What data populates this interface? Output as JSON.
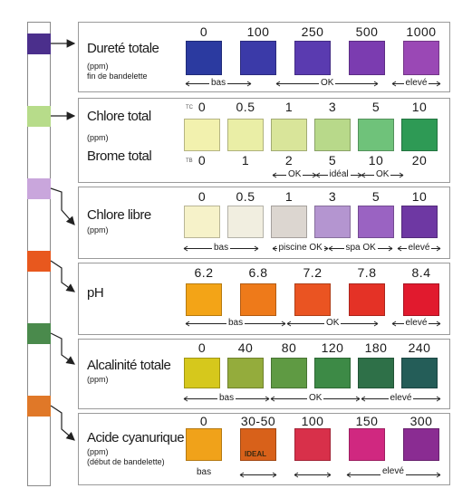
{
  "strip_pads": [
    {
      "color": "#4b2f8c",
      "name": "strip-pad-durete"
    },
    {
      "color": "#b7dc8a",
      "name": "strip-pad-chlore-total"
    },
    {
      "color": "#c9a6dc",
      "name": "strip-pad-chlore-libre"
    },
    {
      "color": "#e8581e",
      "name": "strip-pad-ph"
    },
    {
      "color": "#4a8a4c",
      "name": "strip-pad-alcalinite"
    },
    {
      "color": "#e07828",
      "name": "strip-pad-acide"
    }
  ],
  "durete": {
    "title": "Dureté totale",
    "unit": "(ppm)",
    "note": "fin de bandelette",
    "values": [
      "0",
      "100",
      "250",
      "500",
      "1000"
    ],
    "colors": [
      "#2b3aa0",
      "#3b3aa8",
      "#5a3bb0",
      "#7b3cb0",
      "#9a48b5"
    ],
    "ranges": [
      "bas",
      "OK",
      "elevé"
    ]
  },
  "chlore_total": {
    "title": "Chlore total",
    "unit": "(ppm)",
    "title2": "Brome total",
    "tag_tc": "TC",
    "tag_tb": "TB",
    "values_top": [
      "0",
      "0.5",
      "1",
      "3",
      "5",
      "10"
    ],
    "values_bottom": [
      "0",
      "1",
      "2",
      "5",
      "10",
      "20"
    ],
    "colors": [
      "#f2f1ae",
      "#eaeea6",
      "#d9e59a",
      "#b8d98a",
      "#6fc27a",
      "#2e9a55"
    ],
    "ranges": [
      "OK",
      "idéal",
      "OK"
    ]
  },
  "chlore_libre": {
    "title": "Chlore libre",
    "unit": "(ppm)",
    "values": [
      "0",
      "0.5",
      "1",
      "3",
      "5",
      "10"
    ],
    "colors": [
      "#f6f2c9",
      "#f1eee0",
      "#dcd6d0",
      "#b495d0",
      "#9a63c2",
      "#6e38a3"
    ],
    "ranges": [
      "bas",
      "piscine OK",
      "spa OK",
      "elevé"
    ]
  },
  "ph": {
    "title": "pH",
    "values": [
      "6.2",
      "6.8",
      "7.2",
      "7.8",
      "8.4"
    ],
    "colors": [
      "#f3a417",
      "#ee7a1a",
      "#ea5422",
      "#e43226",
      "#e11a2e"
    ],
    "ranges": [
      "bas",
      "OK",
      "elevé"
    ]
  },
  "alcalinite": {
    "title": "Alcalinité totale",
    "unit": "(ppm)",
    "values": [
      "0",
      "40",
      "80",
      "120",
      "180",
      "240"
    ],
    "colors": [
      "#d6c81c",
      "#94ac3c",
      "#5f9a43",
      "#3d8a46",
      "#2e7048",
      "#245d58"
    ],
    "ranges": [
      "bas",
      "OK",
      "elevé"
    ]
  },
  "acide": {
    "title": "Acide cyanurique",
    "unit": "(ppm)",
    "note": "(début de bandelette)",
    "values": [
      "0",
      "30-50",
      "100",
      "150",
      "300"
    ],
    "colors": [
      "#f0a21a",
      "#d8611a",
      "#d8304a",
      "#d02880",
      "#8a2c92"
    ],
    "ideal_label": "IDEAL",
    "ranges": [
      "bas",
      "elevé"
    ]
  }
}
